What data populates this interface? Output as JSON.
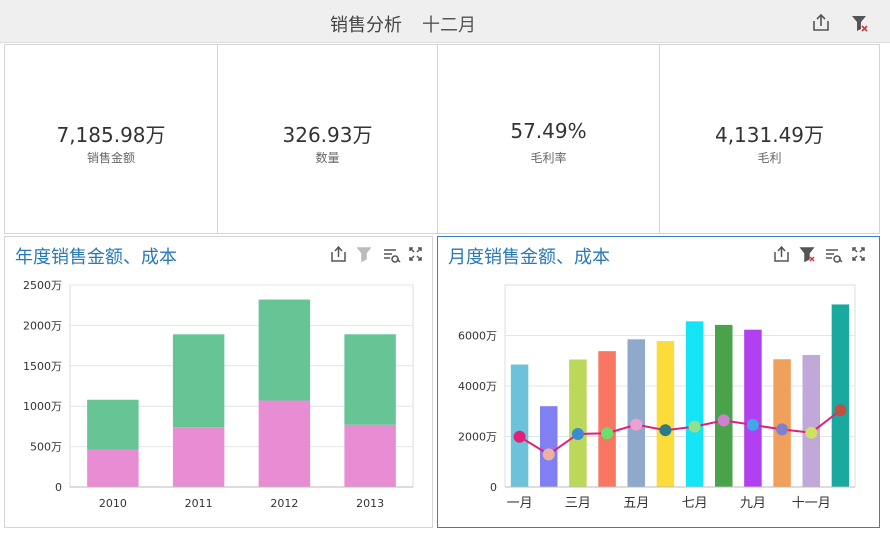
{
  "header": {
    "title": "销售分析",
    "subtitle": "十二月"
  },
  "kpis": [
    {
      "value": "7,185.98万",
      "label": "销售金额"
    },
    {
      "value": "326.93万",
      "label": "数量"
    },
    {
      "value": "57.49%",
      "label": "毛利率"
    },
    {
      "value": "4,131.49万",
      "label": "毛利"
    }
  ],
  "chart_data": [
    {
      "type": "bar",
      "stacked": true,
      "title": "年度销售金额、成本",
      "categories": [
        "2010",
        "2011",
        "2012",
        "2013"
      ],
      "series": [
        {
          "color": "#e88dd3",
          "values": [
            460,
            740,
            1070,
            770
          ]
        },
        {
          "color": "#66c495",
          "values": [
            620,
            1150,
            1250,
            1120
          ]
        }
      ],
      "ylim": [
        0,
        2500
      ],
      "yticks": [
        0,
        {
          "value": 500,
          "label": "500万"
        },
        {
          "value": 1000,
          "label": "1000万"
        },
        {
          "value": 1500,
          "label": "1500万"
        },
        {
          "value": 2000,
          "label": "2000万"
        },
        {
          "value": 2500,
          "label": "2500万"
        }
      ],
      "grid": true
    },
    {
      "type": "combo",
      "title": "月度销售金额、成本",
      "categories": [
        "一月",
        null,
        "三月",
        null,
        "五月",
        null,
        "七月",
        null,
        "九月",
        null,
        "十一月",
        null
      ],
      "series": [
        {
          "type": "bar",
          "colors": [
            "#6cc3d9",
            "#8080f2",
            "#bcd85a",
            "#f97662",
            "#8ea9cc",
            "#fcdc3a",
            "#14e4f5",
            "#4aa34a",
            "#b040f0",
            "#f0a05a",
            "#c0a8d8",
            "#1aa99f"
          ],
          "values": [
            4850,
            3200,
            5050,
            5380,
            5850,
            5780,
            6560,
            6420,
            6230,
            5060,
            5230,
            7230
          ]
        },
        {
          "type": "line",
          "color": "#e0207a",
          "point_colors": [
            "#e0207a",
            "#f0b0a0",
            "#3a8ad8",
            "#6ae06a",
            "#f0a0d0",
            "#2a7a8a",
            "#90e090",
            "#d080d0",
            "#40a8e8",
            "#8080d0",
            "#d0e060",
            "#c05040"
          ],
          "values": [
            1990,
            1290,
            2100,
            2130,
            2470,
            2250,
            2390,
            2640,
            2460,
            2280,
            2150,
            3040
          ]
        }
      ],
      "ylim": [
        0,
        8000
      ],
      "yticks": [
        0,
        {
          "value": 2000,
          "label": "2000万"
        },
        {
          "value": 4000,
          "label": "4000万"
        },
        {
          "value": 6000,
          "label": "6000万"
        }
      ],
      "grid": true
    }
  ]
}
